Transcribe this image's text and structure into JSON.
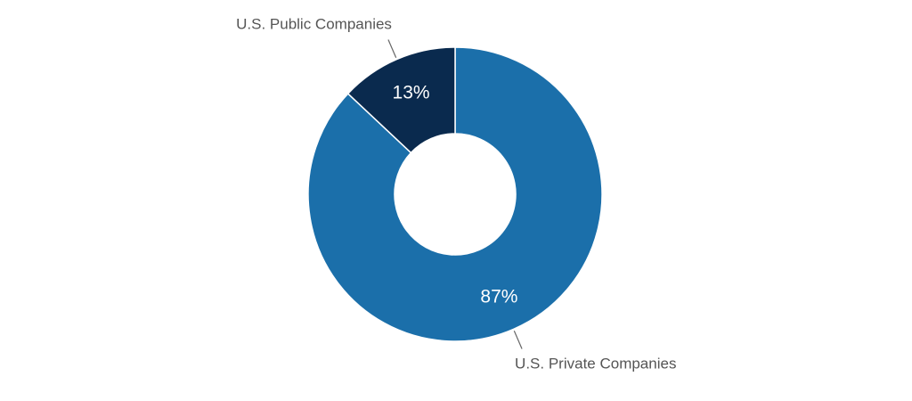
{
  "chart_data": {
    "type": "pie",
    "variant": "donut",
    "categories": [
      "U.S. Private Companies",
      "U.S. Public Companies"
    ],
    "values": [
      87,
      13
    ],
    "value_labels": [
      "87%",
      "13%"
    ],
    "colors": [
      "#1b6faa",
      "#0a2a4e"
    ],
    "title": "",
    "legend": "none"
  }
}
